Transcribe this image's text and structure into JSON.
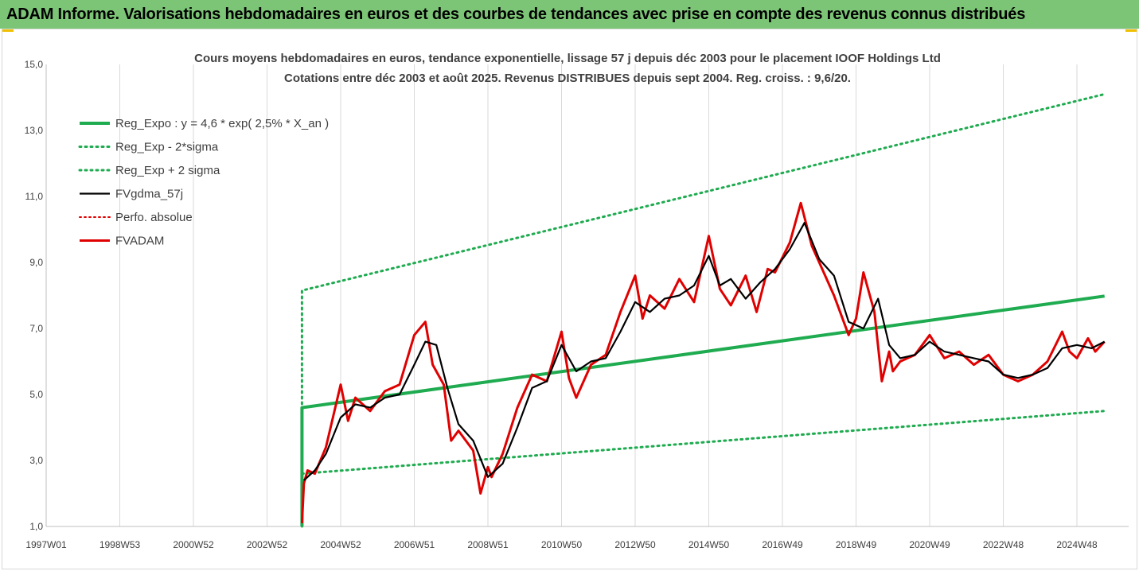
{
  "banner": {
    "title": "ADAM Informe. Valorisations hebdomadaires en euros et des courbes de tendances avec prise en compte des revenus connus distribués"
  },
  "colors": {
    "banner": "#7cc576",
    "reg_expo": "#1fab50",
    "fvgdma": "#000000",
    "fvadam": "#e00000",
    "perfo": "#e00000"
  },
  "chart_data": {
    "type": "line",
    "title": "Cours moyens hebdomadaires en euros, tendance exponentielle, lissage 57 j depuis déc 2003 pour le placement IOOF Holdings Ltd",
    "subtitle": "Cotations entre déc 2003 et août 2025. Revenus DISTRIBUES depuis sept 2004. Reg. croiss. : 9,6/20.",
    "xlabel": "",
    "ylabel": "",
    "xlim": [
      1997.0,
      2025.8
    ],
    "ylim": [
      1.0,
      15.0
    ],
    "y_ticks": [
      "1,0",
      "3,0",
      "5,0",
      "7,0",
      "9,0",
      "11,0",
      "13,0",
      "15,0"
    ],
    "x_ticks": [
      "1997W01",
      "1998W53",
      "2000W52",
      "2002W52",
      "2004W52",
      "2006W51",
      "2008W51",
      "2010W50",
      "2012W50",
      "2014W50",
      "2016W49",
      "2018W49",
      "2020W49",
      "2022W48",
      "2024W48"
    ],
    "x_tick_years": [
      1997.0,
      1999.0,
      2001.0,
      2003.0,
      2005.0,
      2007.0,
      2009.0,
      2011.0,
      2013.0,
      2015.0,
      2017.0,
      2019.0,
      2021.0,
      2023.0,
      2025.0
    ],
    "grid": "vertical",
    "legend_position": "top-left",
    "series": [
      {
        "name": "Reg_Expo : y = 4,6 * exp( 2,5% *  X_an )",
        "style": "solid-green",
        "x": [
          2003.95,
          2003.95,
          2025.75
        ],
        "y": [
          1.0,
          4.6,
          7.98
        ]
      },
      {
        "name": "Reg_Exp - 2*sigma",
        "style": "dotted-green",
        "x": [
          2003.95,
          2025.75
        ],
        "y": [
          2.6,
          4.5
        ]
      },
      {
        "name": "Reg_Exp + 2 sigma",
        "style": "dotted-green",
        "x": [
          2003.95,
          2003.95,
          2025.75
        ],
        "y": [
          1.0,
          8.15,
          14.1
        ]
      },
      {
        "name": "FVgdma_57j",
        "style": "solid-black",
        "x": [
          2004.0,
          2004.3,
          2004.6,
          2005.0,
          2005.4,
          2005.8,
          2006.2,
          2006.6,
          2007.0,
          2007.3,
          2007.6,
          2007.9,
          2008.2,
          2008.6,
          2009.0,
          2009.4,
          2009.8,
          2010.2,
          2010.6,
          2011.0,
          2011.4,
          2011.8,
          2012.2,
          2012.6,
          2013.0,
          2013.4,
          2013.8,
          2014.2,
          2014.6,
          2015.0,
          2015.3,
          2015.6,
          2016.0,
          2016.4,
          2016.8,
          2017.2,
          2017.6,
          2018.0,
          2018.4,
          2018.8,
          2019.2,
          2019.6,
          2019.9,
          2020.2,
          2020.6,
          2021.0,
          2021.4,
          2021.8,
          2022.2,
          2022.6,
          2023.0,
          2023.4,
          2023.8,
          2024.2,
          2024.6,
          2025.0,
          2025.4,
          2025.75
        ],
        "y": [
          2.4,
          2.7,
          3.2,
          4.3,
          4.7,
          4.6,
          4.9,
          5.0,
          5.9,
          6.6,
          6.5,
          5.2,
          4.1,
          3.6,
          2.5,
          2.9,
          4.0,
          5.2,
          5.4,
          6.5,
          5.7,
          6.0,
          6.1,
          6.9,
          7.8,
          7.5,
          7.9,
          8.0,
          8.3,
          9.2,
          8.3,
          8.5,
          7.9,
          8.4,
          8.8,
          9.4,
          10.2,
          9.1,
          8.6,
          7.2,
          7.0,
          7.9,
          6.5,
          6.1,
          6.2,
          6.6,
          6.3,
          6.2,
          6.1,
          6.0,
          5.6,
          5.5,
          5.6,
          5.8,
          6.4,
          6.5,
          6.4,
          6.6
        ]
      },
      {
        "name": "Perfo. absolue",
        "style": "dotted-red",
        "x": [],
        "y": []
      },
      {
        "name": "FVADAM",
        "style": "solid-red",
        "x": [
          2003.95,
          2004.0,
          2004.1,
          2004.3,
          2004.6,
          2005.0,
          2005.2,
          2005.4,
          2005.8,
          2006.2,
          2006.6,
          2007.0,
          2007.3,
          2007.5,
          2007.8,
          2008.0,
          2008.2,
          2008.6,
          2008.8,
          2009.0,
          2009.1,
          2009.4,
          2009.8,
          2010.2,
          2010.6,
          2011.0,
          2011.2,
          2011.4,
          2011.8,
          2012.2,
          2012.6,
          2013.0,
          2013.2,
          2013.4,
          2013.8,
          2014.2,
          2014.6,
          2015.0,
          2015.3,
          2015.6,
          2016.0,
          2016.3,
          2016.6,
          2016.8,
          2017.2,
          2017.5,
          2017.8,
          2018.0,
          2018.4,
          2018.8,
          2019.0,
          2019.2,
          2019.5,
          2019.7,
          2019.9,
          2020.0,
          2020.2,
          2020.6,
          2021.0,
          2021.4,
          2021.8,
          2022.2,
          2022.6,
          2023.0,
          2023.4,
          2023.8,
          2024.2,
          2024.6,
          2024.8,
          2025.0,
          2025.3,
          2025.5,
          2025.75
        ],
        "y": [
          1.1,
          2.3,
          2.7,
          2.6,
          3.4,
          5.3,
          4.2,
          4.9,
          4.5,
          5.1,
          5.3,
          6.8,
          7.2,
          5.9,
          5.3,
          3.6,
          3.9,
          3.3,
          2.0,
          2.8,
          2.5,
          3.2,
          4.6,
          5.6,
          5.4,
          6.9,
          5.5,
          4.9,
          5.9,
          6.2,
          7.5,
          8.6,
          7.3,
          8.0,
          7.6,
          8.5,
          7.8,
          9.8,
          8.2,
          7.7,
          8.6,
          7.5,
          8.8,
          8.7,
          9.6,
          10.8,
          9.5,
          9.0,
          8.0,
          6.8,
          7.3,
          8.7,
          7.5,
          5.4,
          6.3,
          5.7,
          6.0,
          6.2,
          6.8,
          6.1,
          6.3,
          5.9,
          6.2,
          5.6,
          5.4,
          5.6,
          6.0,
          6.9,
          6.3,
          6.1,
          6.7,
          6.3,
          6.6
        ]
      }
    ]
  }
}
